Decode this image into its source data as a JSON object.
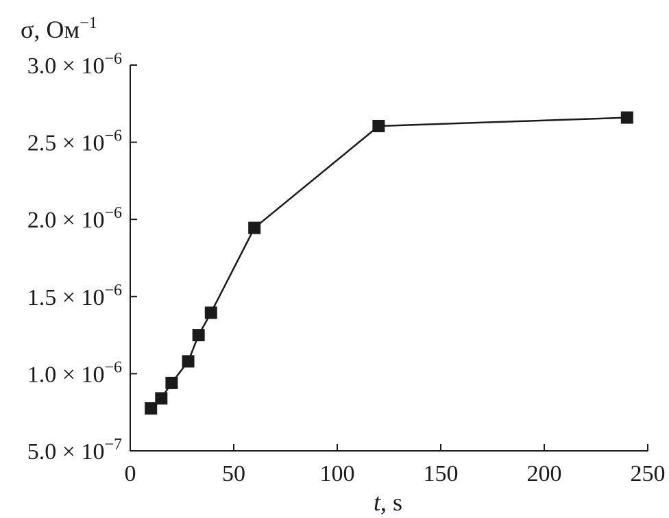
{
  "chart_data": {
    "type": "line",
    "ylabel": {
      "main": "σ, Oм",
      "sup": "−1"
    },
    "xlabel": {
      "var": "t",
      "unit": ", s"
    },
    "xlim": [
      0,
      250
    ],
    "ylim": [
      5e-07,
      3e-06
    ],
    "x_ticks": [
      {
        "value": 0,
        "label": "0"
      },
      {
        "value": 50,
        "label": "50"
      },
      {
        "value": 100,
        "label": "100"
      },
      {
        "value": 150,
        "label": "150"
      },
      {
        "value": 200,
        "label": "200"
      },
      {
        "value": 250,
        "label": "250"
      }
    ],
    "y_ticks": [
      {
        "value": 5e-07,
        "mantissa": "5.0 × 10",
        "exponent": "−7"
      },
      {
        "value": 1e-06,
        "mantissa": "1.0 × 10",
        "exponent": "−6"
      },
      {
        "value": 1.5e-06,
        "mantissa": "1.5 × 10",
        "exponent": "−6"
      },
      {
        "value": 2e-06,
        "mantissa": "2.0 × 10",
        "exponent": "−6"
      },
      {
        "value": 2.5e-06,
        "mantissa": "2.5 × 10",
        "exponent": "−6"
      },
      {
        "value": 3e-06,
        "mantissa": "3.0 × 10",
        "exponent": "−6"
      }
    ],
    "grid": false,
    "marker": "square",
    "series": [
      {
        "x": [
          10,
          15,
          20,
          28,
          33,
          39,
          60,
          120,
          240
        ],
        "y": [
          7.75e-07,
          8.4e-07,
          9.4e-07,
          1.08e-06,
          1.25e-06,
          1.395e-06,
          1.945e-06,
          2.605e-06,
          2.66e-06
        ]
      }
    ]
  }
}
